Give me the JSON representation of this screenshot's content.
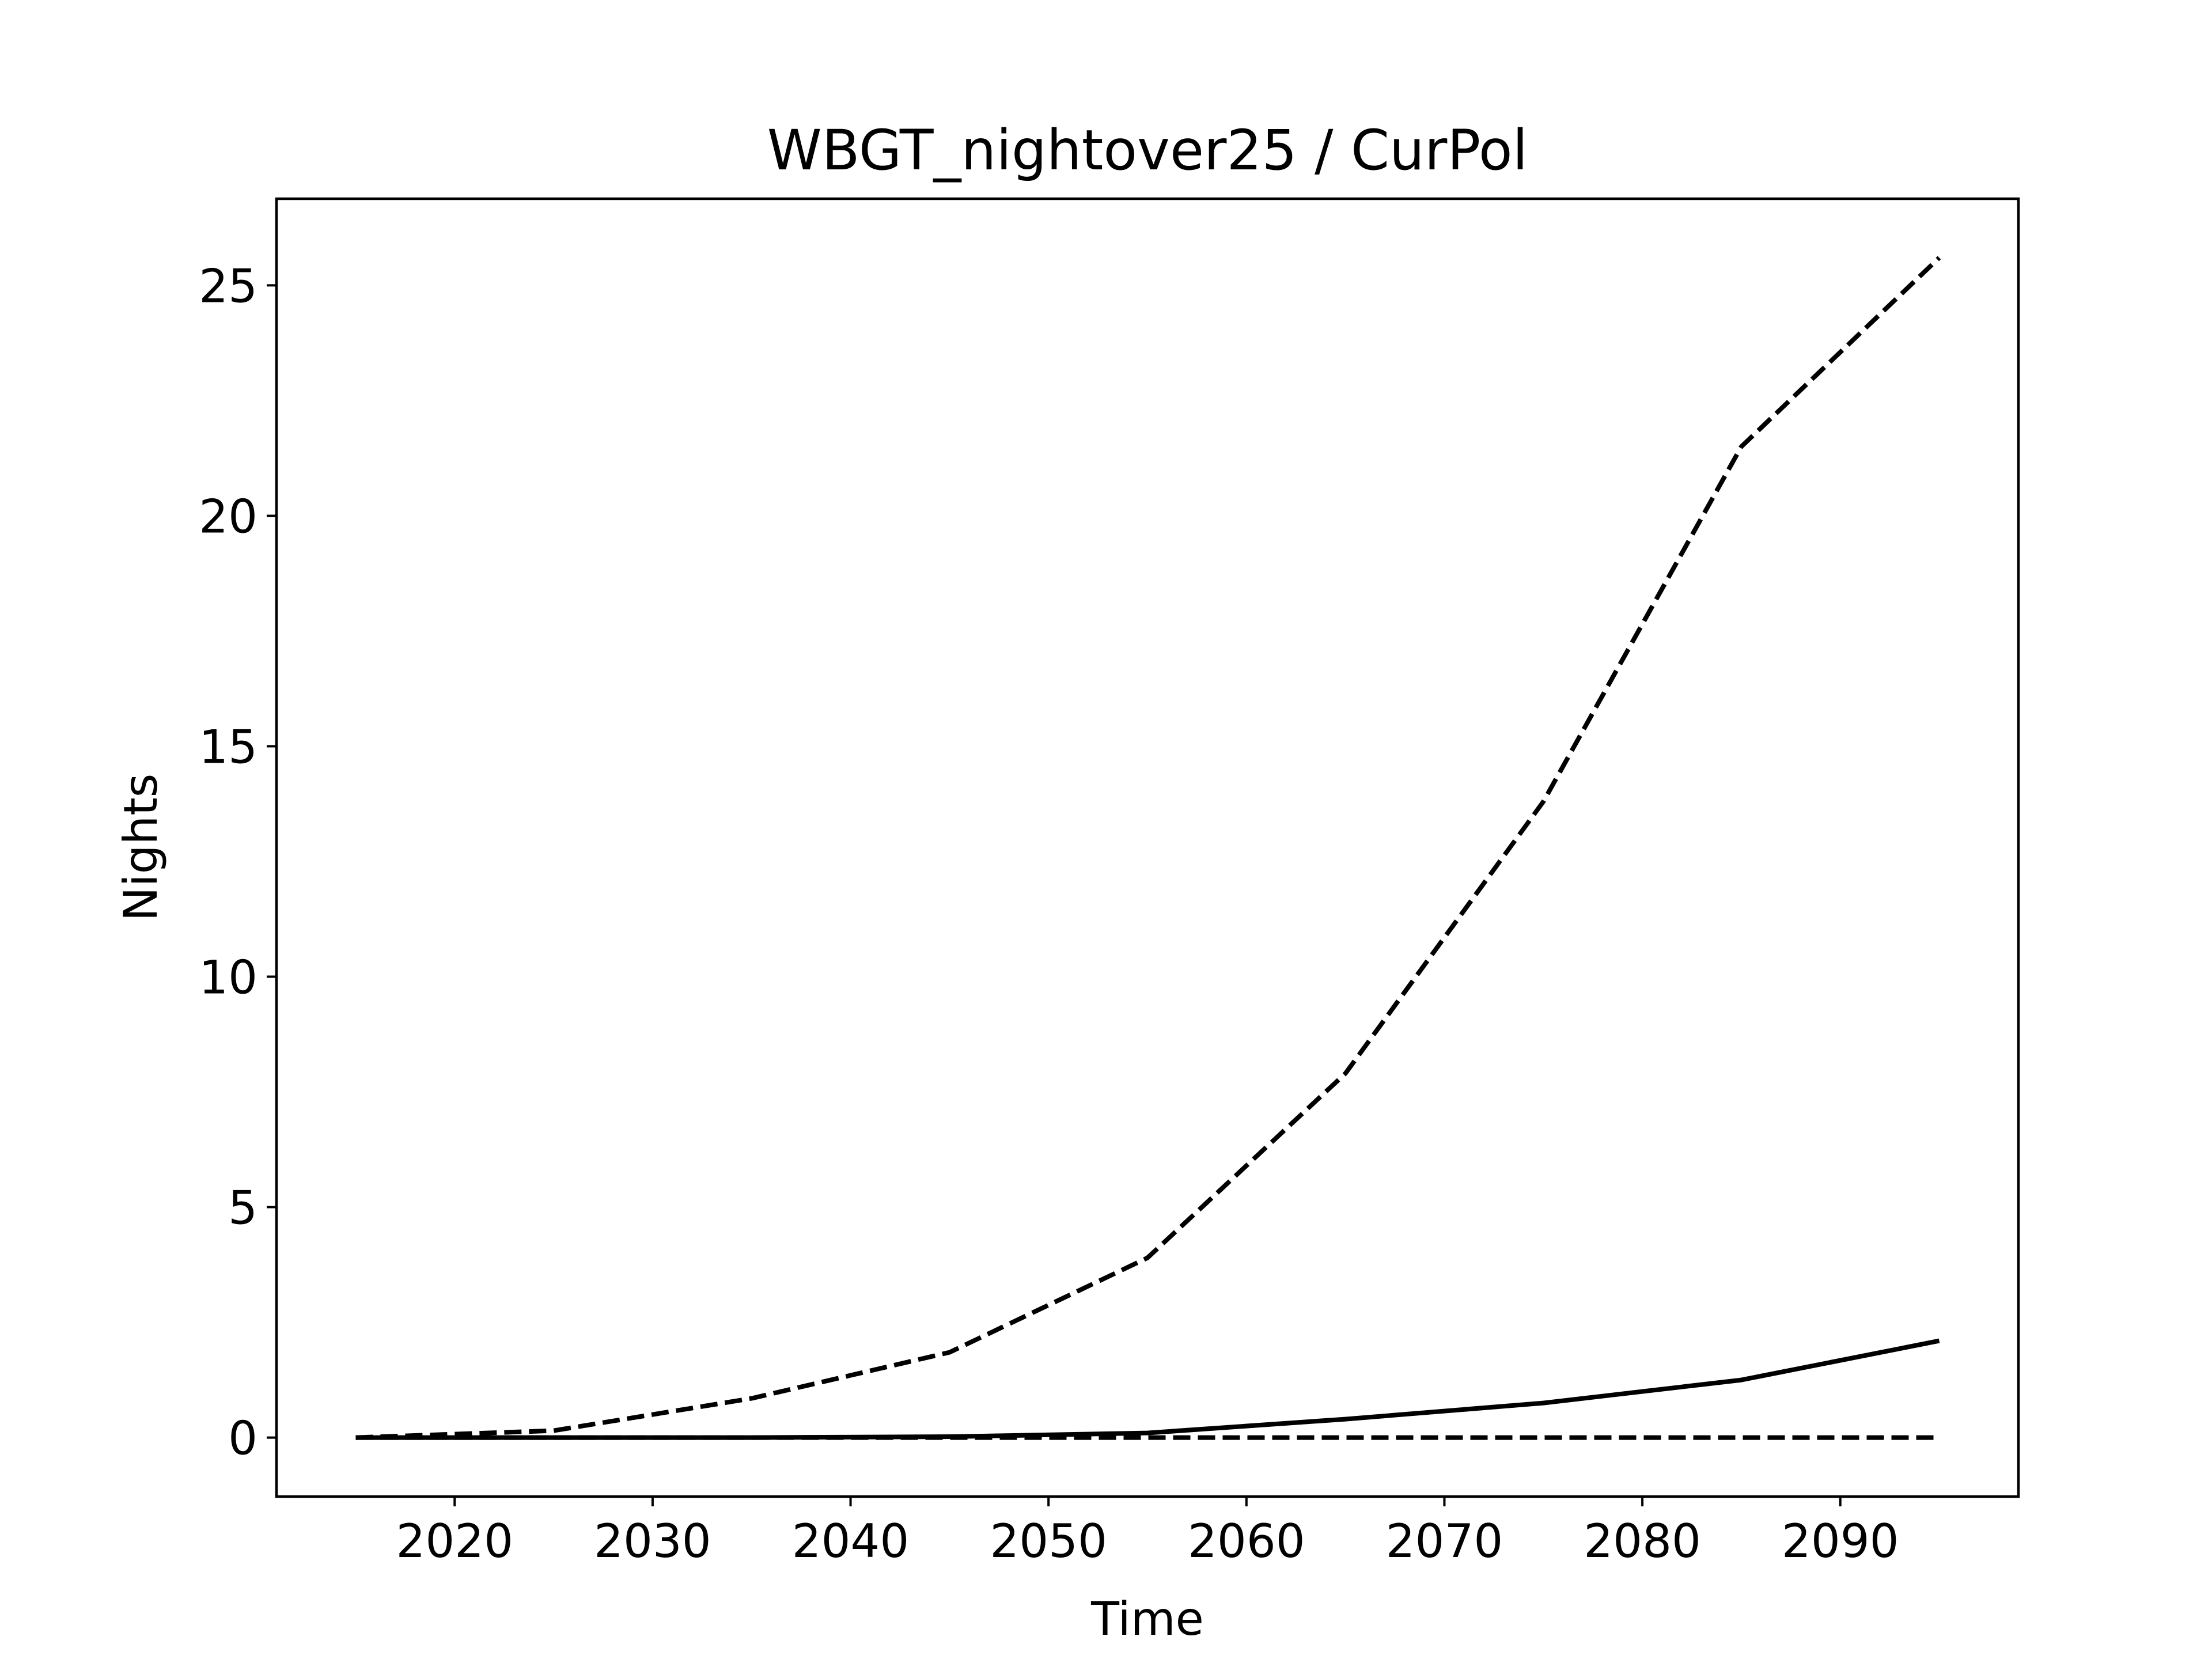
{
  "chart_data": {
    "type": "line",
    "title": "WBGT_nightover25 / CurPol",
    "xlabel": "Time",
    "ylabel": "Nights",
    "x": [
      2015,
      2025,
      2035,
      2045,
      2055,
      2065,
      2075,
      2085,
      2095
    ],
    "series": [
      {
        "values": [
          0.0,
          0.0,
          0.0,
          0.02,
          0.1,
          0.4,
          0.75,
          1.25,
          2.1
        ],
        "style": "solid"
      },
      {
        "values": [
          0.0,
          0.15,
          0.85,
          1.85,
          3.9,
          7.9,
          13.8,
          21.5,
          25.6
        ],
        "style": "dashed"
      },
      {
        "values": [
          0.0,
          0.0,
          0.0,
          0.0,
          0.0,
          0.0,
          0.0,
          0.0,
          0.0
        ],
        "style": "dashed"
      }
    ],
    "xticks": [
      "2020",
      "2030",
      "2040",
      "2050",
      "2060",
      "2070",
      "2080",
      "2090"
    ],
    "yticks": [
      "0",
      "5",
      "10",
      "15",
      "20",
      "25"
    ],
    "xlim": [
      2011,
      2099
    ],
    "ylim": [
      -1.28,
      26.88
    ],
    "grid": false,
    "line_color": "#000000"
  }
}
